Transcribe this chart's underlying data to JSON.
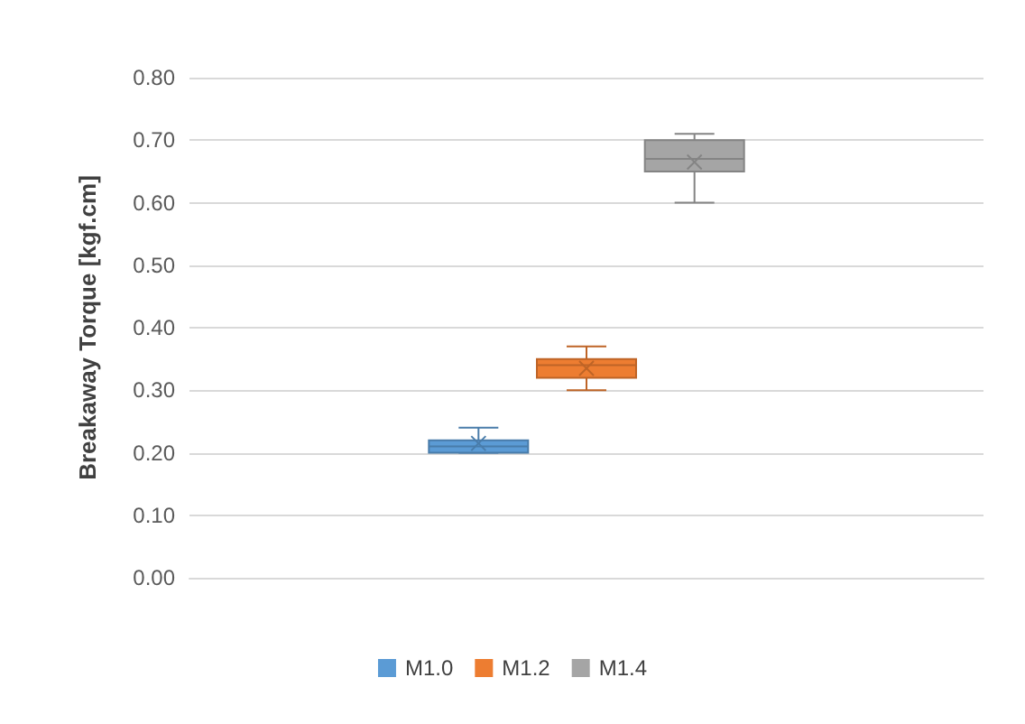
{
  "chart_data": {
    "type": "box",
    "ylabel": "Breakaway Torque [kgf.cm]",
    "categories": [
      null
    ],
    "series": [
      {
        "name": "M1.0",
        "color": "#5b9bd5",
        "boxes": [
          {
            "low": 0.2,
            "q1": 0.2,
            "median": 0.21,
            "q3": 0.22,
            "high": 0.24,
            "mean": 0.215
          }
        ]
      },
      {
        "name": "M1.2",
        "color": "#ed7d31",
        "boxes": [
          {
            "low": 0.3,
            "q1": 0.32,
            "median": 0.34,
            "q3": 0.35,
            "high": 0.37,
            "mean": 0.335
          }
        ]
      },
      {
        "name": "M1.4",
        "color": "#a5a5a5",
        "boxes": [
          {
            "low": 0.6,
            "q1": 0.65,
            "median": 0.67,
            "q3": 0.7,
            "high": 0.71,
            "mean": 0.665
          }
        ]
      }
    ],
    "ylim": [
      0,
      0.8
    ],
    "yticks": [
      {
        "value": 0,
        "label": "0.00"
      },
      {
        "value": 0.1,
        "label": "0.10"
      },
      {
        "value": 0.2,
        "label": "0.20"
      },
      {
        "value": 0.3,
        "label": "0.30"
      },
      {
        "value": 0.4,
        "label": "0.40"
      },
      {
        "value": 0.5,
        "label": "0.50"
      },
      {
        "value": 0.6,
        "label": "0.60"
      },
      {
        "value": 0.7,
        "label": "0.70"
      },
      {
        "value": 0.8,
        "label": "0.80"
      }
    ],
    "grid": "y",
    "legend": "bottom"
  }
}
